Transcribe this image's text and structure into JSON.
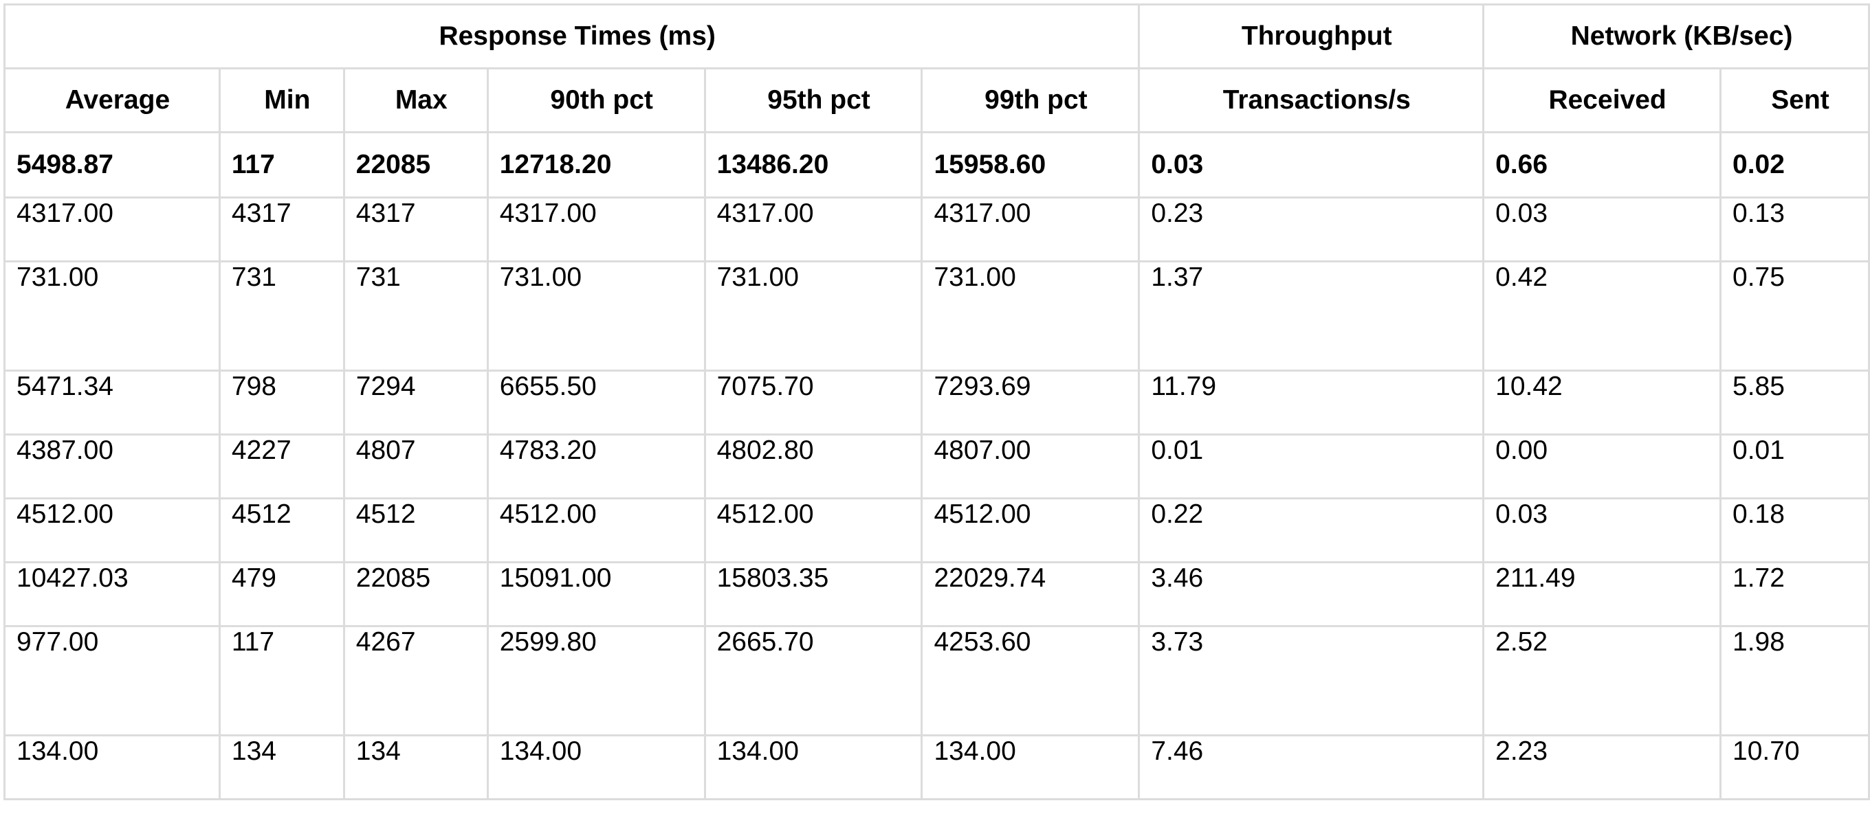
{
  "group_headers": [
    {
      "label": "Response Times (ms)",
      "span": 6
    },
    {
      "label": "Throughput",
      "span": 1
    },
    {
      "label": "Network (KB/sec)",
      "span": 2
    }
  ],
  "columns": [
    "Average",
    "Min",
    "Max",
    "90th pct",
    "95th pct",
    "99th pct",
    "Transactions/s",
    "Received",
    "Sent"
  ],
  "total": [
    "5498.87",
    "117",
    "22085",
    "12718.20",
    "13486.20",
    "15958.60",
    "0.03",
    "0.66",
    "0.02"
  ],
  "rows": [
    {
      "cells": [
        "4317.00",
        "4317",
        "4317",
        "4317.00",
        "4317.00",
        "4317.00",
        "0.23",
        "0.03",
        "0.13"
      ],
      "tall": false
    },
    {
      "cells": [
        "731.00",
        "731",
        "731",
        "731.00",
        "731.00",
        "731.00",
        "1.37",
        "0.42",
        "0.75"
      ],
      "tall": true
    },
    {
      "cells": [
        "5471.34",
        "798",
        "7294",
        "6655.50",
        "7075.70",
        "7293.69",
        "11.79",
        "10.42",
        "5.85"
      ],
      "tall": false
    },
    {
      "cells": [
        "4387.00",
        "4227",
        "4807",
        "4783.20",
        "4802.80",
        "4807.00",
        "0.01",
        "0.00",
        "0.01"
      ],
      "tall": false
    },
    {
      "cells": [
        "4512.00",
        "4512",
        "4512",
        "4512.00",
        "4512.00",
        "4512.00",
        "0.22",
        "0.03",
        "0.18"
      ],
      "tall": false
    },
    {
      "cells": [
        "10427.03",
        "479",
        "22085",
        "15091.00",
        "15803.35",
        "22029.74",
        "3.46",
        "211.49",
        "1.72"
      ],
      "tall": false
    },
    {
      "cells": [
        "977.00",
        "117",
        "4267",
        "2599.80",
        "2665.70",
        "4253.60",
        "3.73",
        "2.52",
        "1.98"
      ],
      "tall": true
    },
    {
      "cells": [
        "134.00",
        "134",
        "134",
        "134.00",
        "134.00",
        "134.00",
        "7.46",
        "2.23",
        "10.70"
      ],
      "tall": false
    }
  ]
}
